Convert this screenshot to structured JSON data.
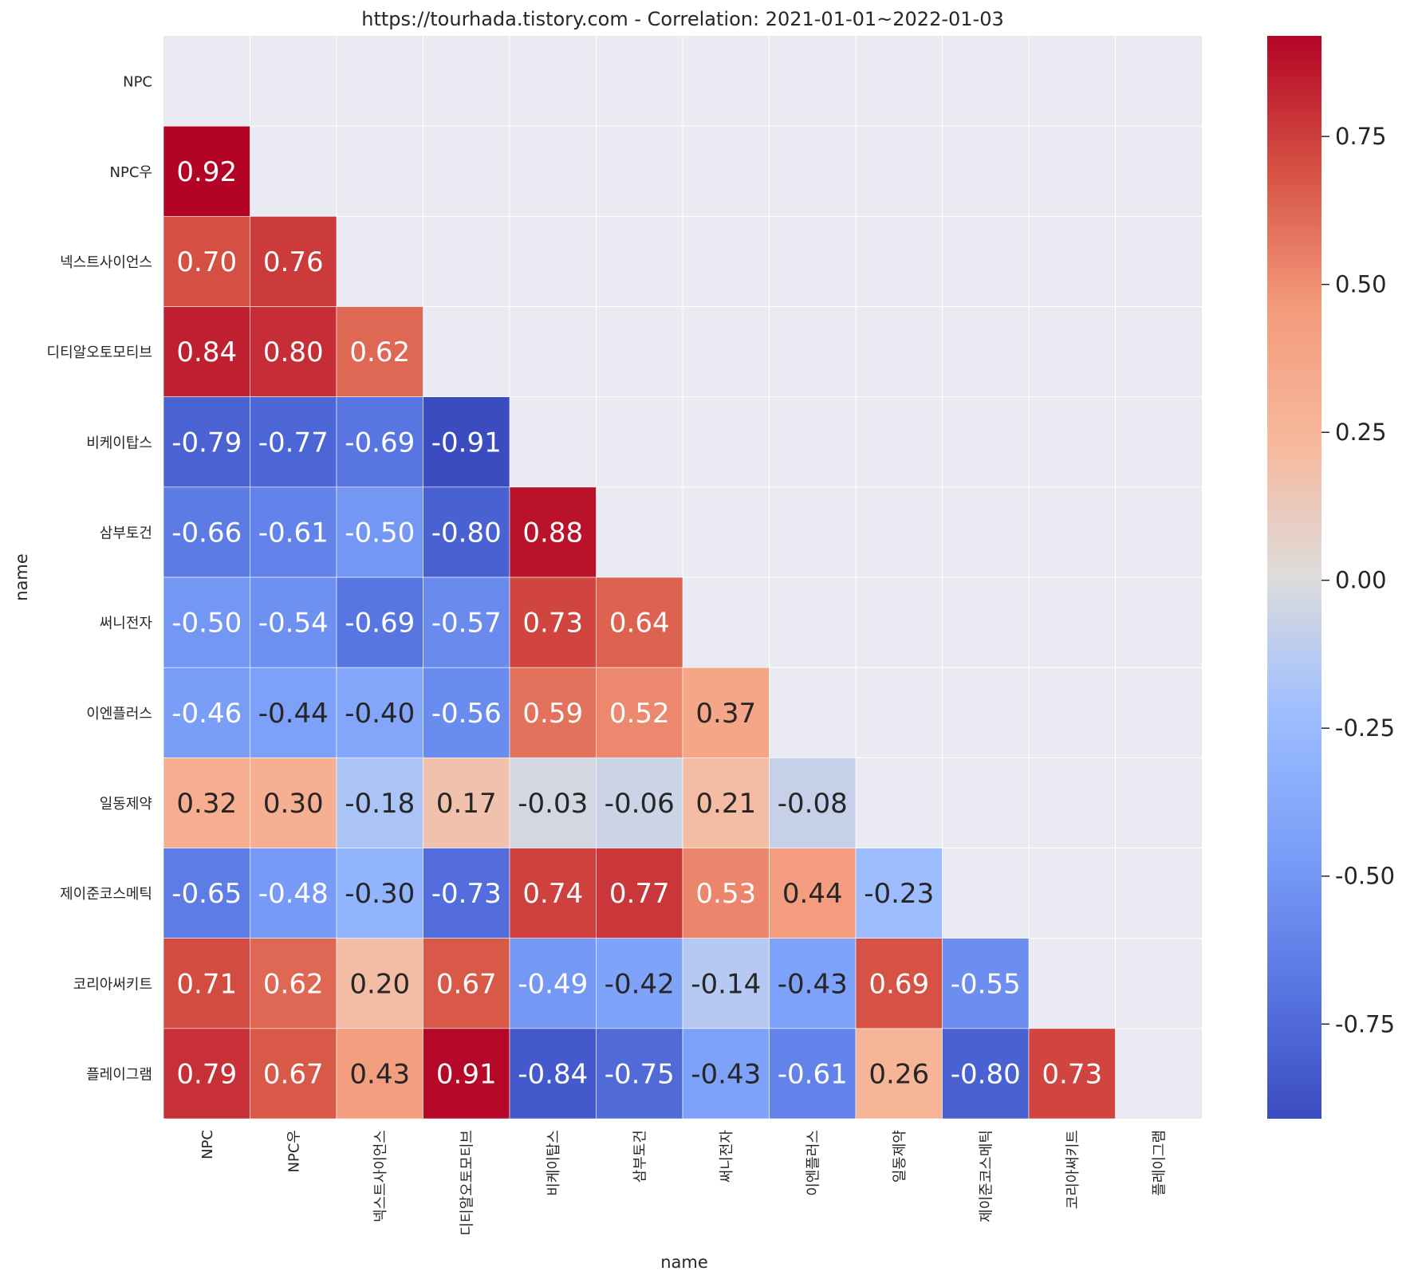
{
  "chart_data": {
    "type": "heatmap",
    "title": "https://tourhada.tistory.com - Correlation: 2021-01-01~2022-01-03",
    "xlabel": "name",
    "ylabel": "name",
    "labels": [
      "NPC",
      "NPC우",
      "넥스트사이언스",
      "디티알오토모티브",
      "비케이탑스",
      "삼부토건",
      "써니전자",
      "이엔플러스",
      "일동제약",
      "제이준코스메틱",
      "코리아써키트",
      "플레이그램"
    ],
    "matrix": [
      [
        null,
        null,
        null,
        null,
        null,
        null,
        null,
        null,
        null,
        null,
        null,
        null
      ],
      [
        0.92,
        null,
        null,
        null,
        null,
        null,
        null,
        null,
        null,
        null,
        null,
        null
      ],
      [
        0.7,
        0.76,
        null,
        null,
        null,
        null,
        null,
        null,
        null,
        null,
        null,
        null
      ],
      [
        0.84,
        0.8,
        0.62,
        null,
        null,
        null,
        null,
        null,
        null,
        null,
        null,
        null
      ],
      [
        -0.79,
        -0.77,
        -0.69,
        -0.91,
        null,
        null,
        null,
        null,
        null,
        null,
        null,
        null
      ],
      [
        -0.66,
        -0.61,
        -0.5,
        -0.8,
        0.88,
        null,
        null,
        null,
        null,
        null,
        null,
        null
      ],
      [
        -0.5,
        -0.54,
        -0.69,
        -0.57,
        0.73,
        0.64,
        null,
        null,
        null,
        null,
        null,
        null
      ],
      [
        -0.46,
        -0.44,
        -0.4,
        -0.56,
        0.59,
        0.52,
        0.37,
        null,
        null,
        null,
        null,
        null
      ],
      [
        0.32,
        0.3,
        -0.18,
        0.17,
        -0.03,
        -0.06,
        0.21,
        -0.08,
        null,
        null,
        null,
        null
      ],
      [
        -0.65,
        -0.48,
        -0.3,
        -0.73,
        0.74,
        0.77,
        0.53,
        0.44,
        -0.23,
        null,
        null,
        null
      ],
      [
        0.71,
        0.62,
        0.2,
        0.67,
        -0.49,
        -0.42,
        -0.14,
        -0.43,
        0.69,
        -0.55,
        null,
        null
      ],
      [
        0.79,
        0.67,
        0.43,
        0.91,
        -0.84,
        -0.75,
        -0.43,
        -0.61,
        0.26,
        -0.8,
        0.73,
        null
      ]
    ],
    "colorbar": {
      "cmap": "coolwarm",
      "vmin": -0.91,
      "vmax": 0.92,
      "ticks": [
        0.75,
        0.5,
        0.25,
        0.0,
        -0.25,
        -0.5,
        -0.75
      ],
      "tick_labels": [
        "0.75",
        "0.50",
        "0.25",
        "0.00",
        "-0.25",
        "-0.50",
        "-0.75"
      ]
    },
    "masked_cell_color": "#eaeaf2",
    "grid": true
  }
}
